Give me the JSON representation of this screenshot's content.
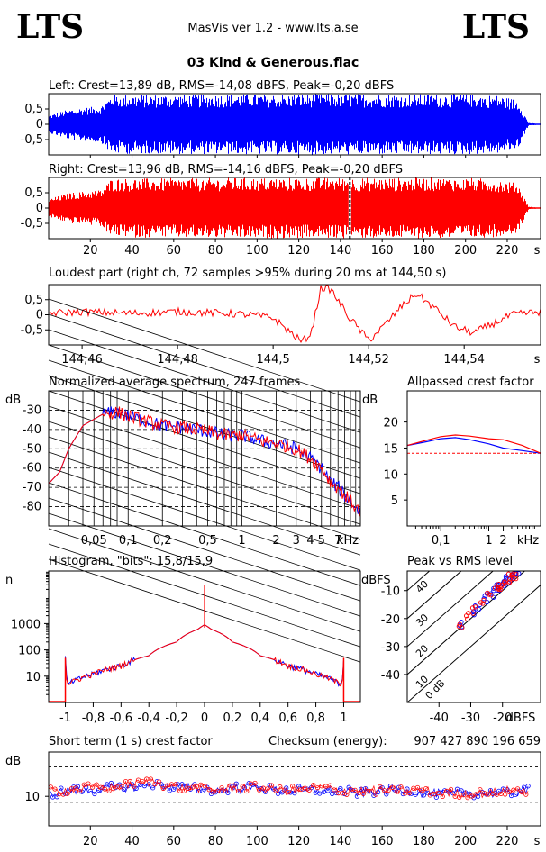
{
  "header": {
    "logo_left": "LTS",
    "logo_right": "LTS",
    "app_title": "MasVis ver 1.2 - www.lts.a.se",
    "file_title": "03 Kind & Generous.flac"
  },
  "colors": {
    "left_channel": "#0000ff",
    "right_channel": "#ff0000"
  },
  "chart_data": [
    {
      "id": "waveform-left",
      "type": "area",
      "title": "Left: Crest=13,89 dB, RMS=-14,08 dBFS, Peak=-0,20 dBFS",
      "ylim": [
        -1,
        1
      ],
      "y_ticks": [
        0.5,
        0,
        -0.5
      ],
      "y_tick_labels": [
        "0,5",
        "0",
        "-0,5"
      ],
      "xlim": [
        0,
        236
      ],
      "series": [
        {
          "x": [
            0,
            10,
            25,
            30,
            50,
            80,
            82,
            110,
            140,
            143,
            170,
            200,
            215,
            225,
            230,
            236
          ],
          "values": [
            0.3,
            0.5,
            0.6,
            0.97,
            0.97,
            0.98,
            0.99,
            0.99,
            0.99,
            0.99,
            0.99,
            0.99,
            0.95,
            0.8,
            0.05,
            0.0
          ]
        }
      ]
    },
    {
      "id": "waveform-right",
      "type": "area",
      "title": "Right: Crest=13,96 dB, RMS=-14,16 dBFS, Peak=-0,20 dBFS",
      "ylim": [
        -1,
        1
      ],
      "y_ticks": [
        0.5,
        0,
        -0.5
      ],
      "y_tick_labels": [
        "0,5",
        "0",
        "-0,5"
      ],
      "xlim": [
        0,
        236
      ],
      "x_ticks": [
        20,
        40,
        60,
        80,
        100,
        120,
        140,
        160,
        180,
        200,
        220
      ],
      "x_unit_label": "s",
      "marker_x": 144.5,
      "series": [
        {
          "x": [
            0,
            10,
            25,
            30,
            50,
            80,
            82,
            110,
            140,
            143,
            170,
            200,
            215,
            225,
            230,
            236
          ],
          "values": [
            0.3,
            0.5,
            0.6,
            0.97,
            0.97,
            0.98,
            0.99,
            0.99,
            0.99,
            0.99,
            0.99,
            0.99,
            0.95,
            0.8,
            0.05,
            0.0
          ]
        }
      ]
    },
    {
      "id": "loudest-part",
      "type": "line",
      "title": "Loudest part (right ch, 72 samples >95% during 20 ms at 144,50 s)",
      "ylim": [
        -1,
        1
      ],
      "y_ticks": [
        0.5,
        0,
        -0.5
      ],
      "y_tick_labels": [
        "0,5",
        "0",
        "-0,5"
      ],
      "xlim": [
        144.453,
        144.556
      ],
      "x_ticks": [
        144.46,
        144.48,
        144.5,
        144.52,
        144.54
      ],
      "x_tick_labels": [
        "144,46",
        "144,48",
        "144,5",
        "144,52",
        "144,54"
      ],
      "x_unit_label": "s",
      "series": [
        {
          "name": "right",
          "x": [
            144.453,
            144.46,
            144.47,
            144.48,
            144.49,
            144.495,
            144.5,
            144.503,
            144.506,
            144.508,
            144.51,
            144.512,
            144.516,
            144.52,
            144.523,
            144.527,
            144.53,
            144.534,
            144.538,
            144.542,
            144.546,
            144.55,
            144.556
          ],
          "values": [
            0.05,
            0.1,
            0.05,
            0.1,
            0.05,
            0.0,
            -0.1,
            -0.5,
            -0.9,
            -0.6,
            0.9,
            0.85,
            -0.1,
            -0.85,
            -0.4,
            0.3,
            0.7,
            0.2,
            -0.4,
            -0.6,
            -0.3,
            0.0,
            0.1
          ]
        }
      ]
    },
    {
      "id": "spectrum",
      "type": "line",
      "title": "Normalized average spectrum, 247 frames",
      "ylabel": "dB",
      "ylim": [
        -90,
        -20
      ],
      "y_ticks": [
        -30,
        -40,
        -50,
        -60,
        -70,
        -80
      ],
      "xlim": [
        0.02,
        11
      ],
      "x_scale": "log",
      "x_ticks": [
        0.05,
        0.1,
        0.2,
        0.5,
        1,
        2,
        3,
        4,
        5,
        7
      ],
      "x_tick_labels": [
        "0,05",
        "0,1",
        "0,2",
        "0,5",
        "1",
        "2",
        "3",
        "4",
        "5",
        "7"
      ],
      "x_unit_label": "kHz",
      "series": [
        {
          "x": [
            0.02,
            0.025,
            0.03,
            0.04,
            0.06,
            0.08,
            0.1,
            0.15,
            0.2,
            0.3,
            0.5,
            0.7,
            1,
            1.5,
            2,
            3,
            4,
            5,
            6,
            7,
            8,
            10,
            11
          ],
          "values": [
            -68,
            -62,
            -50,
            -38,
            -32,
            -31,
            -33,
            -36,
            -38,
            -39,
            -41,
            -43,
            -43,
            -46,
            -47,
            -50,
            -55,
            -60,
            -67,
            -70,
            -74,
            -80,
            -83
          ]
        },
        {
          "x": [
            0.02,
            0.025,
            0.03,
            0.04,
            0.06,
            0.08,
            0.1,
            0.15,
            0.2,
            0.3,
            0.5,
            0.7,
            1,
            1.5,
            2,
            3,
            4,
            5,
            6,
            7,
            8,
            10,
            11
          ],
          "values": [
            -68,
            -62,
            -50,
            -38,
            -32,
            -31,
            -33,
            -36,
            -38,
            -39,
            -41,
            -43,
            -43,
            -46,
            -47,
            -50,
            -55,
            -60,
            -67,
            -70,
            -74,
            -80,
            -83
          ]
        }
      ]
    },
    {
      "id": "allpassed-crest",
      "type": "line",
      "title": "Allpassed crest factor",
      "ylabel": "dB",
      "ylim": [
        0,
        26
      ],
      "y_ticks": [
        20,
        15,
        10,
        5
      ],
      "xlim": [
        0.02,
        12
      ],
      "x_scale": "log",
      "x_ticks": [
        0.1,
        1,
        2
      ],
      "x_tick_labels": [
        "0,1",
        "1",
        "2"
      ],
      "x_unit_label": "kHz",
      "reference_line_db": 14,
      "series": [
        {
          "x": [
            0.02,
            0.05,
            0.1,
            0.2,
            0.4,
            1,
            2,
            5,
            12
          ],
          "values": [
            15.5,
            16.2,
            16.8,
            17.0,
            16.6,
            15.8,
            15.0,
            14.5,
            14.0
          ]
        },
        {
          "x": [
            0.02,
            0.05,
            0.1,
            0.2,
            0.4,
            1,
            2,
            5,
            12
          ],
          "values": [
            15.5,
            16.5,
            17.2,
            17.5,
            17.3,
            16.8,
            16.6,
            15.5,
            14.0
          ]
        }
      ]
    },
    {
      "id": "histogram",
      "type": "line",
      "title": "Histogram, \"bits\": 15,8/15,9",
      "ylabel": "n",
      "y_scale": "log",
      "ylim": [
        1,
        100000
      ],
      "y_ticks": [
        1000,
        100,
        10
      ],
      "xlim": [
        -1.12,
        1.12
      ],
      "x_ticks": [
        -1,
        -0.8,
        -0.6,
        -0.4,
        -0.2,
        0,
        0.2,
        0.4,
        0.6,
        0.8,
        1
      ],
      "x_tick_labels": [
        "-1",
        "-0,8",
        "-0,6",
        "-0,4",
        "-0,2",
        "0",
        "0,2",
        "0,4",
        "0,6",
        "0,8",
        "1"
      ],
      "series": [
        {
          "x": [
            -1,
            -0.99,
            -0.95,
            -0.8,
            -0.6,
            -0.4,
            -0.2,
            -0.05,
            0,
            0.05,
            0.2,
            0.4,
            0.6,
            0.8,
            0.95,
            0.99,
            1
          ],
          "values": [
            50,
            5,
            6,
            12,
            25,
            60,
            200,
            600,
            900,
            600,
            200,
            60,
            25,
            12,
            6,
            5,
            50
          ]
        },
        {
          "x": [
            -1,
            -0.99,
            -0.95,
            -0.8,
            -0.6,
            -0.4,
            -0.2,
            -0.05,
            0,
            0.05,
            0.2,
            0.4,
            0.6,
            0.8,
            0.95,
            0.99,
            1
          ],
          "values": [
            50,
            5,
            6,
            12,
            25,
            60,
            200,
            600,
            900,
            600,
            200,
            60,
            25,
            12,
            6,
            5,
            50
          ]
        }
      ]
    },
    {
      "id": "peak-vs-rms",
      "type": "scatter",
      "title": "Peak vs RMS level",
      "ylabel": "dBFS",
      "xlim": [
        -50,
        -8
      ],
      "ylim": [
        -50,
        -3
      ],
      "y_ticks": [
        -10,
        -20,
        -30,
        -40
      ],
      "x_ticks": [
        -40,
        -30,
        -20
      ],
      "x_unit_label": "dBFS",
      "diagonal_labels": [
        "40",
        "30",
        "20",
        "10",
        "0 dB"
      ],
      "series": [
        {
          "x": [
            -33,
            -30,
            -28,
            -25,
            -24,
            -22,
            -21,
            -20,
            -19,
            -18,
            -17,
            -16,
            -15
          ],
          "values": [
            -22,
            -18,
            -16,
            -13,
            -12,
            -10,
            -9,
            -8,
            -7,
            -6,
            -5,
            -4,
            -3.5
          ]
        },
        {
          "x": [
            -33,
            -31,
            -29,
            -26,
            -24,
            -22,
            -21,
            -20,
            -19,
            -18,
            -17,
            -16,
            -15
          ],
          "values": [
            -22,
            -19,
            -17,
            -14,
            -12,
            -10,
            -9,
            -8,
            -7,
            -6,
            -5,
            -4,
            -3.5
          ]
        }
      ]
    },
    {
      "id": "short-term-crest",
      "type": "scatter",
      "title": "Short term (1 s) crest factor",
      "ylabel": "dB",
      "checksum_label": "Checksum (energy):",
      "checksum_value": "907 427 890 196 659",
      "ylim": [
        0,
        25
      ],
      "y_ticks": [
        10
      ],
      "dashed_levels": [
        20,
        8
      ],
      "xlim": [
        0,
        236
      ],
      "x_ticks": [
        20,
        40,
        60,
        80,
        100,
        120,
        140,
        160,
        180,
        200,
        220
      ],
      "x_unit_label": "s",
      "series": [
        {
          "x": [
            2,
            10,
            20,
            30,
            40,
            50,
            60,
            70,
            80,
            90,
            100,
            110,
            120,
            130,
            140,
            150,
            160,
            170,
            180,
            190,
            200,
            210,
            220,
            230
          ],
          "values": [
            11,
            12,
            12,
            13,
            13,
            14,
            13,
            13,
            12,
            13,
            13,
            12,
            12,
            12,
            12,
            11,
            12,
            12,
            11,
            11,
            11,
            11,
            11,
            12
          ]
        },
        {
          "x": [
            2,
            10,
            20,
            30,
            40,
            50,
            60,
            70,
            80,
            90,
            100,
            110,
            120,
            130,
            140,
            150,
            160,
            170,
            180,
            190,
            200,
            210,
            220,
            230
          ],
          "values": [
            12,
            12,
            13,
            13,
            14,
            15,
            13,
            13,
            12,
            13,
            13,
            12,
            12,
            13,
            12,
            12,
            12,
            12,
            12,
            11,
            11,
            11,
            12,
            12
          ]
        }
      ]
    }
  ]
}
